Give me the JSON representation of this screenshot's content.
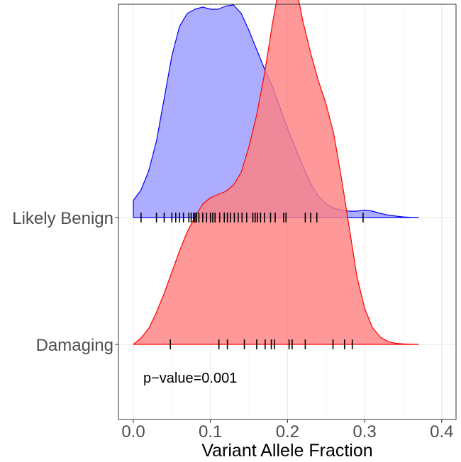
{
  "chart_data": {
    "type": "area",
    "subtype": "ridgeline-density",
    "xlabel": "Variant Allele Fraction",
    "ylabel": "",
    "xlim": [
      -0.02,
      0.42
    ],
    "x_ticks": [
      0.0,
      0.1,
      0.2,
      0.3,
      0.4
    ],
    "x_tick_labels": [
      "0.0",
      "0.1",
      "0.2",
      "0.3",
      "0.4"
    ],
    "grid": true,
    "annotation": "p−value=0.001",
    "series": [
      {
        "name": "Likely Benign",
        "fill": "#9999ff",
        "line": "#0000ff",
        "rug": [
          0.01,
          0.03,
          0.04,
          0.05,
          0.055,
          0.06,
          0.065,
          0.072,
          0.075,
          0.078,
          0.08,
          0.082,
          0.085,
          0.09,
          0.095,
          0.1,
          0.103,
          0.106,
          0.112,
          0.118,
          0.122,
          0.126,
          0.131,
          0.136,
          0.141,
          0.147,
          0.155,
          0.158,
          0.161,
          0.165,
          0.17,
          0.178,
          0.184,
          0.195,
          0.198,
          0.223,
          0.23,
          0.238,
          0.298
        ],
        "density": {
          "x": [
            0.0,
            0.01,
            0.02,
            0.03,
            0.04,
            0.05,
            0.06,
            0.07,
            0.08,
            0.09,
            0.1,
            0.11,
            0.12,
            0.13,
            0.14,
            0.15,
            0.16,
            0.17,
            0.18,
            0.19,
            0.2,
            0.21,
            0.22,
            0.23,
            0.24,
            0.25,
            0.26,
            0.27,
            0.28,
            0.29,
            0.3,
            0.31,
            0.32,
            0.33,
            0.34,
            0.35,
            0.36,
            0.37
          ],
          "y": [
            0.08,
            0.13,
            0.22,
            0.36,
            0.56,
            0.76,
            0.9,
            0.96,
            0.98,
            0.99,
            0.98,
            0.98,
            0.995,
            1.0,
            0.96,
            0.88,
            0.79,
            0.7,
            0.62,
            0.52,
            0.42,
            0.33,
            0.24,
            0.16,
            0.1,
            0.065,
            0.045,
            0.035,
            0.03,
            0.03,
            0.035,
            0.03,
            0.02,
            0.012,
            0.007,
            0.003,
            0.001,
            0.0
          ]
        }
      },
      {
        "name": "Damaging",
        "fill": "#ff7f7f",
        "line": "#ff0000",
        "rug": [
          0.048,
          0.111,
          0.122,
          0.144,
          0.16,
          0.171,
          0.179,
          0.183,
          0.202,
          0.206,
          0.223,
          0.259,
          0.274,
          0.284
        ],
        "density": {
          "x": [
            0.0,
            0.01,
            0.02,
            0.03,
            0.04,
            0.05,
            0.06,
            0.07,
            0.08,
            0.09,
            0.1,
            0.11,
            0.12,
            0.13,
            0.14,
            0.15,
            0.16,
            0.17,
            0.18,
            0.19,
            0.2,
            0.21,
            0.22,
            0.23,
            0.24,
            0.25,
            0.26,
            0.27,
            0.28,
            0.29,
            0.3,
            0.31,
            0.32,
            0.33,
            0.34,
            0.35,
            0.36,
            0.37
          ],
          "y": [
            0.0,
            0.03,
            0.075,
            0.15,
            0.24,
            0.34,
            0.44,
            0.53,
            0.6,
            0.66,
            0.69,
            0.705,
            0.72,
            0.75,
            0.81,
            0.93,
            1.08,
            1.27,
            1.5,
            1.7,
            1.8,
            1.7,
            1.52,
            1.37,
            1.24,
            1.13,
            0.99,
            0.78,
            0.55,
            0.32,
            0.17,
            0.08,
            0.035,
            0.014,
            0.005,
            0.002,
            0.001,
            0.0
          ]
        }
      }
    ]
  }
}
